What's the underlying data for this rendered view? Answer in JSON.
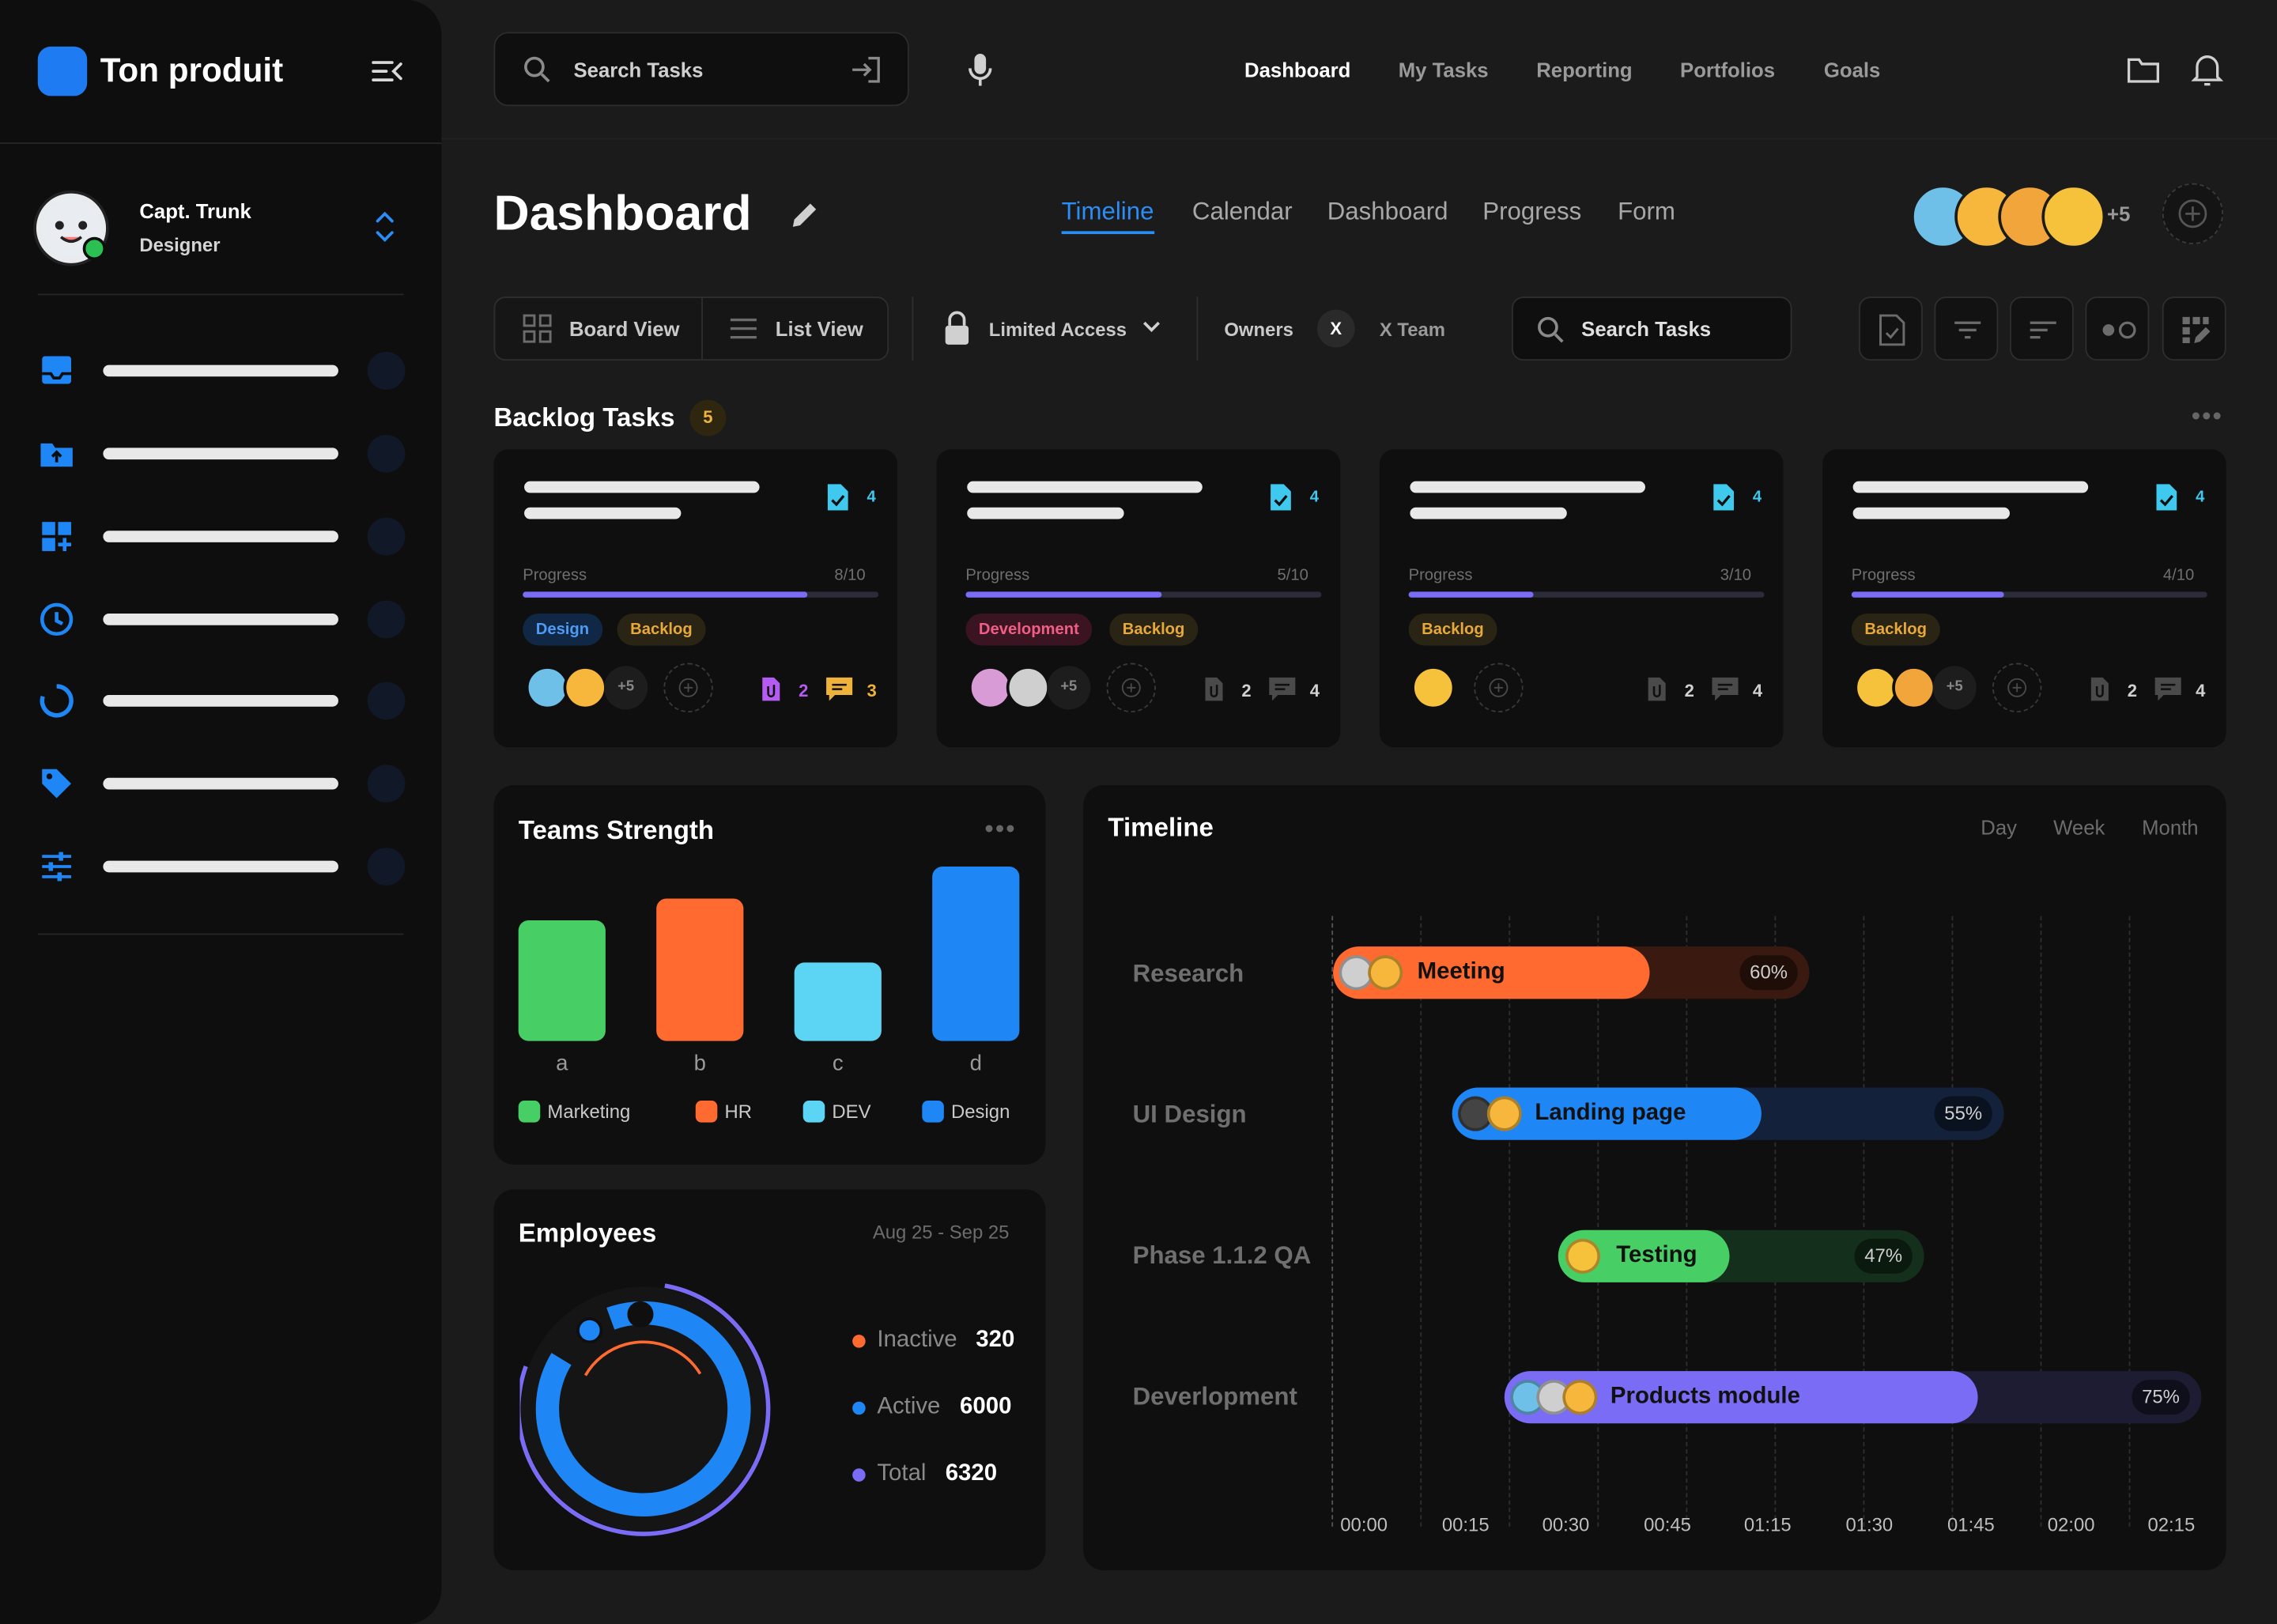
{
  "app": {
    "name": "Ton produit"
  },
  "user": {
    "name": "Capt. Trunk",
    "role": "Designer"
  },
  "sidebar": {
    "items": [
      {
        "icon": "inbox-icon"
      },
      {
        "icon": "folder-upload-icon"
      },
      {
        "icon": "dashboard-add-icon"
      },
      {
        "icon": "clock-icon"
      },
      {
        "icon": "progress-ring-icon"
      },
      {
        "icon": "tag-icon"
      },
      {
        "icon": "sliders-icon"
      }
    ]
  },
  "topbar": {
    "search_placeholder": "Search Tasks",
    "nav": [
      "Dashboard",
      "My Tasks",
      "Reporting",
      "Portfolios",
      "Goals"
    ],
    "active_nav": "Dashboard"
  },
  "header": {
    "title": "Dashboard",
    "tabs": [
      "Timeline",
      "Calendar",
      "Dashboard",
      "Progress",
      "Form"
    ],
    "active_tab": "Timeline",
    "members_more": "+5"
  },
  "toolbar": {
    "board_view": "Board View",
    "list_view": "List View",
    "access": "Limited Access",
    "owners_label": "Owners",
    "owner_chip": "X",
    "owner_team": "X Team",
    "search_placeholder": "Search Tasks"
  },
  "backlog": {
    "title": "Backlog Tasks",
    "count": "5",
    "cards": [
      {
        "doc_count": "4",
        "progress_label": "Progress",
        "progress_text": "8/10",
        "progress": 0.8,
        "tags": [
          "Design",
          "Backlog"
        ],
        "more": "+5",
        "attachments": "2",
        "comments": "3"
      },
      {
        "doc_count": "4",
        "progress_label": "Progress",
        "progress_text": "5/10",
        "progress": 0.55,
        "tags": [
          "Development",
          "Backlog"
        ],
        "more": "+5",
        "attachments": "2",
        "comments": "4"
      },
      {
        "doc_count": "4",
        "progress_label": "Progress",
        "progress_text": "3/10",
        "progress": 0.35,
        "tags": [
          "Backlog"
        ],
        "more": "",
        "attachments": "2",
        "comments": "4"
      },
      {
        "doc_count": "4",
        "progress_label": "Progress",
        "progress_text": "4/10",
        "progress": 0.43,
        "tags": [
          "Backlog"
        ],
        "more": "+5",
        "attachments": "2",
        "comments": "4"
      }
    ]
  },
  "teams": {
    "title": "Teams Strength",
    "legend": [
      "Marketing",
      "HR",
      "DEV",
      "Design"
    ]
  },
  "chart_data": {
    "type": "bar",
    "title": "Teams Strength",
    "categories": [
      "a",
      "b",
      "c",
      "d"
    ],
    "series": [
      {
        "name": "Marketing",
        "values": [
          83,
          null,
          null,
          null
        ]
      },
      {
        "name": "HR",
        "values": [
          null,
          98,
          null,
          null
        ]
      },
      {
        "name": "DEV",
        "values": [
          null,
          null,
          54,
          null
        ]
      },
      {
        "name": "Design",
        "values": [
          null,
          null,
          null,
          120
        ]
      }
    ],
    "colors": [
      "#47cf66",
      "#ff6a30",
      "#5cd5f4",
      "#1f86f5"
    ],
    "grid": false,
    "legend_position": "bottom"
  },
  "employees": {
    "title": "Employees",
    "range": "Aug 25 - Sep 25",
    "stats": [
      {
        "label": "Inactive",
        "value": "320",
        "color": "#ff6a30"
      },
      {
        "label": "Active",
        "value": "6000",
        "color": "#1f86f5"
      },
      {
        "label": "Total",
        "value": "6320",
        "color": "#7b6cf6"
      }
    ]
  },
  "timeline": {
    "title": "Timeline",
    "ranges": [
      "Day",
      "Week",
      "Month"
    ],
    "ticks": [
      "00:00",
      "00:15",
      "00:30",
      "00:45",
      "01:15",
      "01:30",
      "01:45",
      "02:00",
      "02:15"
    ],
    "rows": [
      {
        "label": "Research",
        "task": "Meeting",
        "percent": "60%",
        "color": "#ff6a30",
        "track": "#3a1a10"
      },
      {
        "label": "UI Design",
        "task": "Landing page",
        "percent": "55%",
        "color": "#1f86f5",
        "track": "#13223a"
      },
      {
        "label": "Phase 1.1.2 QA",
        "task": "Testing",
        "percent": "47%",
        "color": "#47cf66",
        "track": "#14301c"
      },
      {
        "label": "Deverlopment",
        "task": "Products module",
        "percent": "75%",
        "color": "#7b6cf6",
        "track": "#1d1c33"
      }
    ]
  }
}
